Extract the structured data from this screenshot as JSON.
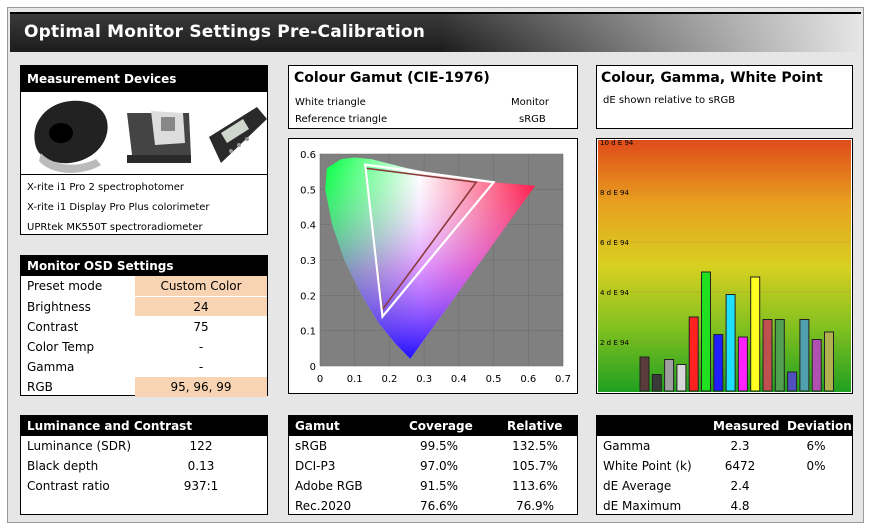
{
  "title": "Optimal Monitor Settings Pre-Calibration",
  "devices": {
    "header": "Measurement Devices",
    "items": [
      "X-rite i1 Pro 2 spectrophotomer",
      "X-rite i1 Display Pro Plus colorimeter",
      "UPRtek MK550T spectroradiometer"
    ]
  },
  "osd": {
    "header": "Monitor OSD Settings",
    "rows": [
      {
        "label": "Preset mode",
        "value": "Custom Color",
        "highlight": true
      },
      {
        "label": "Brightness",
        "value": "24",
        "highlight": true
      },
      {
        "label": "Contrast",
        "value": "75",
        "highlight": false
      },
      {
        "label": "Color Temp",
        "value": "-",
        "highlight": false
      },
      {
        "label": "Gamma",
        "value": "-",
        "highlight": false
      },
      {
        "label": "RGB",
        "value": "95, 96, 99",
        "highlight": true
      }
    ]
  },
  "luminance": {
    "header": "Luminance and Contrast",
    "rows": [
      {
        "label": "Luminance (SDR)",
        "value": "122"
      },
      {
        "label": "Black depth",
        "value": "0.13"
      },
      {
        "label": "Contrast ratio",
        "value": "937:1"
      }
    ]
  },
  "gamut_panel": {
    "title": "Colour Gamut (CIE-1976)",
    "legend": [
      {
        "label": "White triangle",
        "value": "Monitor"
      },
      {
        "label": "Reference triangle",
        "value": "sRGB"
      }
    ]
  },
  "gamut_table": {
    "headers": [
      "Gamut",
      "Coverage",
      "Relative"
    ],
    "rows": [
      [
        "sRGB",
        "99.5%",
        "132.5%"
      ],
      [
        "DCI-P3",
        "97.0%",
        "105.7%"
      ],
      [
        "Adobe RGB",
        "91.5%",
        "113.6%"
      ],
      [
        "Rec.2020",
        "76.6%",
        "76.9%"
      ]
    ]
  },
  "cgw_panel": {
    "title": "Colour, Gamma, White Point",
    "subtitle": "dE shown relative to sRGB"
  },
  "measure_table": {
    "headers": [
      "",
      "Measured",
      "Deviation"
    ],
    "rows": [
      [
        "Gamma",
        "2.3",
        "6%"
      ],
      [
        "White Point (k)",
        "6472",
        "0%"
      ],
      [
        "dE Average",
        "2.4",
        ""
      ],
      [
        "dE Maximum",
        "4.8",
        ""
      ]
    ]
  },
  "chart_data": [
    {
      "type": "scatter",
      "title": "",
      "xlabel": "",
      "ylabel": "",
      "xlim": [
        0,
        0.7
      ],
      "ylim": [
        0,
        0.6
      ],
      "x_ticks": [
        "0",
        "0.1",
        "0.2",
        "0.3",
        "0.4",
        "0.5",
        "0.6",
        "0.7"
      ],
      "y_ticks": [
        "0",
        "0.1",
        "0.2",
        "0.3",
        "0.4",
        "0.5",
        "0.6"
      ],
      "series": [
        {
          "x": [
            0.5,
            0.13,
            0.18
          ],
          "y": [
            0.52,
            0.57,
            0.14
          ],
          "color": "#ffffff"
        },
        {
          "x": [
            0.45,
            0.13,
            0.18
          ],
          "y": [
            0.52,
            0.56,
            0.16
          ],
          "color": "#8b3a3a"
        }
      ]
    },
    {
      "type": "bar",
      "title": "",
      "y_ticks": [
        "2 d E 94",
        "4 d E 94",
        "6 d E 94",
        "8 d E 94",
        "10 d E 94"
      ],
      "ylim": [
        0,
        10
      ],
      "values": [
        1.4,
        0.7,
        1.3,
        1.1,
        3.0,
        4.8,
        2.3,
        3.9,
        2.2,
        4.6,
        2.9,
        2.9,
        0.8,
        2.9,
        2.1,
        2.4
      ],
      "colors": [
        "#5a3a3a",
        "#3a3a3a",
        "#a0a0a0",
        "#d8d8d8",
        "#ff2020",
        "#20e020",
        "#2020ff",
        "#20e0ff",
        "#ff20ff",
        "#ffff20",
        "#c05050",
        "#50a050",
        "#5050c0",
        "#50a0b0",
        "#b050b0",
        "#b0b050"
      ]
    }
  ]
}
